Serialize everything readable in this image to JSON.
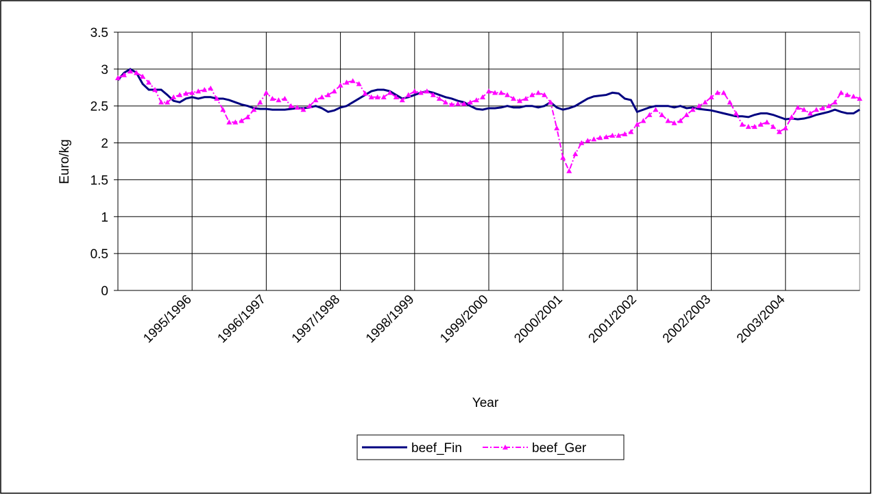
{
  "chart_data": {
    "type": "line",
    "x_label": "Year",
    "y_label": "Euro/kg",
    "categories": [
      null,
      null,
      null,
      null,
      null,
      null,
      null,
      null,
      null,
      null,
      null,
      null,
      "1995/1996",
      null,
      null,
      null,
      null,
      null,
      null,
      null,
      null,
      null,
      null,
      null,
      "1996/1997",
      null,
      null,
      null,
      null,
      null,
      null,
      null,
      null,
      null,
      null,
      null,
      "1997/1998",
      null,
      null,
      null,
      null,
      null,
      null,
      null,
      null,
      null,
      null,
      null,
      "1998/1999",
      null,
      null,
      null,
      null,
      null,
      null,
      null,
      null,
      null,
      null,
      null,
      "1999/2000",
      null,
      null,
      null,
      null,
      null,
      null,
      null,
      null,
      null,
      null,
      null,
      "2000/2001",
      null,
      null,
      null,
      null,
      null,
      null,
      null,
      null,
      null,
      null,
      null,
      "2001/2002",
      null,
      null,
      null,
      null,
      null,
      null,
      null,
      null,
      null,
      null,
      null,
      "2002/2003",
      null,
      null,
      null,
      null,
      null,
      null,
      null,
      null,
      null,
      null,
      null,
      "2003/2004",
      null,
      null,
      null,
      null,
      null,
      null,
      null,
      null,
      null,
      null,
      null,
      null
    ],
    "series": [
      {
        "name": "beef_Fin",
        "color": "#000080",
        "values": [
          2.85,
          2.95,
          3.0,
          2.95,
          2.8,
          2.72,
          2.72,
          2.72,
          2.65,
          2.57,
          2.55,
          2.6,
          2.62,
          2.6,
          2.62,
          2.62,
          2.6,
          2.6,
          2.58,
          2.55,
          2.52,
          2.5,
          2.47,
          2.46,
          2.46,
          2.45,
          2.45,
          2.45,
          2.46,
          2.47,
          2.47,
          2.48,
          2.5,
          2.47,
          2.42,
          2.44,
          2.48,
          2.5,
          2.55,
          2.6,
          2.65,
          2.7,
          2.72,
          2.72,
          2.7,
          2.65,
          2.6,
          2.62,
          2.65,
          2.68,
          2.7,
          2.68,
          2.65,
          2.62,
          2.6,
          2.57,
          2.55,
          2.5,
          2.46,
          2.45,
          2.47,
          2.47,
          2.48,
          2.5,
          2.48,
          2.48,
          2.5,
          2.5,
          2.48,
          2.5,
          2.55,
          2.48,
          2.45,
          2.47,
          2.5,
          2.55,
          2.6,
          2.63,
          2.64,
          2.65,
          2.68,
          2.67,
          2.6,
          2.58,
          2.42,
          2.45,
          2.48,
          2.5,
          2.5,
          2.5,
          2.48,
          2.5,
          2.47,
          2.48,
          2.46,
          2.45,
          2.44,
          2.42,
          2.4,
          2.38,
          2.36,
          2.36,
          2.35,
          2.38,
          2.4,
          2.4,
          2.38,
          2.35,
          2.32,
          2.33,
          2.32,
          2.33,
          2.35,
          2.38,
          2.4,
          2.42,
          2.45,
          2.42,
          2.4,
          2.4,
          2.45
        ]
      },
      {
        "name": "beef_Ger",
        "color": "#ff00ff",
        "values": [
          2.88,
          2.92,
          2.97,
          2.95,
          2.9,
          2.82,
          2.72,
          2.55,
          2.55,
          2.62,
          2.65,
          2.67,
          2.68,
          2.7,
          2.72,
          2.74,
          2.6,
          2.45,
          2.28,
          2.28,
          2.3,
          2.35,
          2.45,
          2.55,
          2.68,
          2.6,
          2.58,
          2.6,
          2.5,
          2.48,
          2.45,
          2.5,
          2.58,
          2.62,
          2.65,
          2.7,
          2.78,
          2.82,
          2.84,
          2.8,
          2.67,
          2.62,
          2.62,
          2.62,
          2.68,
          2.62,
          2.58,
          2.65,
          2.7,
          2.68,
          2.7,
          2.65,
          2.6,
          2.55,
          2.52,
          2.53,
          2.53,
          2.55,
          2.58,
          2.62,
          2.7,
          2.68,
          2.68,
          2.65,
          2.6,
          2.57,
          2.6,
          2.65,
          2.68,
          2.65,
          2.55,
          2.2,
          1.8,
          1.62,
          1.85,
          2.0,
          2.03,
          2.05,
          2.07,
          2.08,
          2.1,
          2.1,
          2.12,
          2.15,
          2.25,
          2.3,
          2.38,
          2.45,
          2.38,
          2.3,
          2.27,
          2.3,
          2.38,
          2.45,
          2.5,
          2.55,
          2.62,
          2.68,
          2.68,
          2.55,
          2.4,
          2.25,
          2.22,
          2.22,
          2.25,
          2.28,
          2.22,
          2.15,
          2.2,
          2.35,
          2.48,
          2.45,
          2.4,
          2.45,
          2.47,
          2.5,
          2.55,
          2.68,
          2.65,
          2.63,
          2.6
        ]
      }
    ],
    "ylim": [
      0,
      3.5
    ],
    "yticks": [
      0,
      0.5,
      1,
      1.5,
      2,
      2.5,
      3,
      3.5
    ],
    "grid": true,
    "legend": "bottom"
  }
}
